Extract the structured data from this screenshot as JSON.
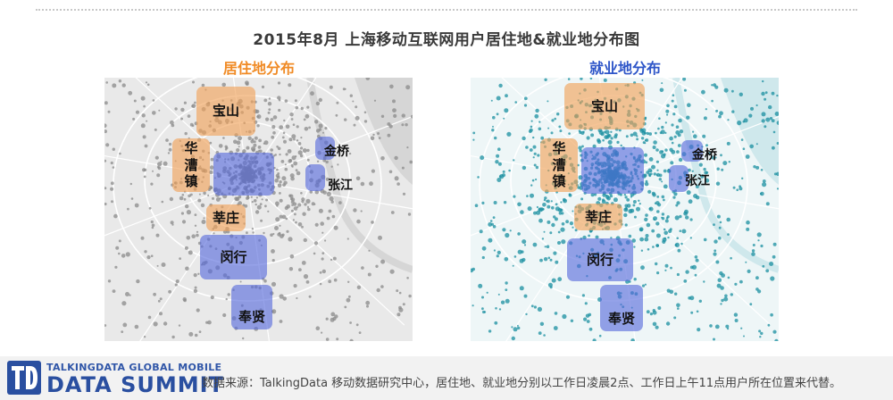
{
  "title": "2015年8月 上海移动互联网用户居住地&就业地分布图",
  "left_panel": {
    "title": "居住地分布",
    "regions": {
      "baoshan": "宝山",
      "huacaozhen": [
        "华",
        "漕",
        "镇"
      ],
      "jinqiao": "金桥",
      "zhangjiang": "张江",
      "xinzhuang": "莘庄",
      "minhang": "闵行",
      "fengxian": "奉贤"
    }
  },
  "right_panel": {
    "title": "就业地分布",
    "regions": {
      "baoshan": "宝山",
      "huacaozhen": [
        "华",
        "漕",
        "镇"
      ],
      "jinqiao": "金桥",
      "zhangjiang": "张江",
      "xinzhuang": "莘庄",
      "minhang": "闵行",
      "fengxian": "奉贤"
    }
  },
  "logo": {
    "mark": "TD",
    "top_line": "TALKINGDATA GLOBAL MOBILE",
    "main": "DATA SUMMIT"
  },
  "source_note": "数据来源：TalkingData 移动数据研究中心，居住地、就业地分别以工作日凌晨2点、工作日上午11点用户所在位置来代替。",
  "colors": {
    "residence_title": "#f08a24",
    "work_title": "#2d55c8",
    "residence_dots": "#8a8a8a",
    "work_dots": "#1a8fa0",
    "residence_region": "#f0a055",
    "work_region": "#5569dc"
  }
}
